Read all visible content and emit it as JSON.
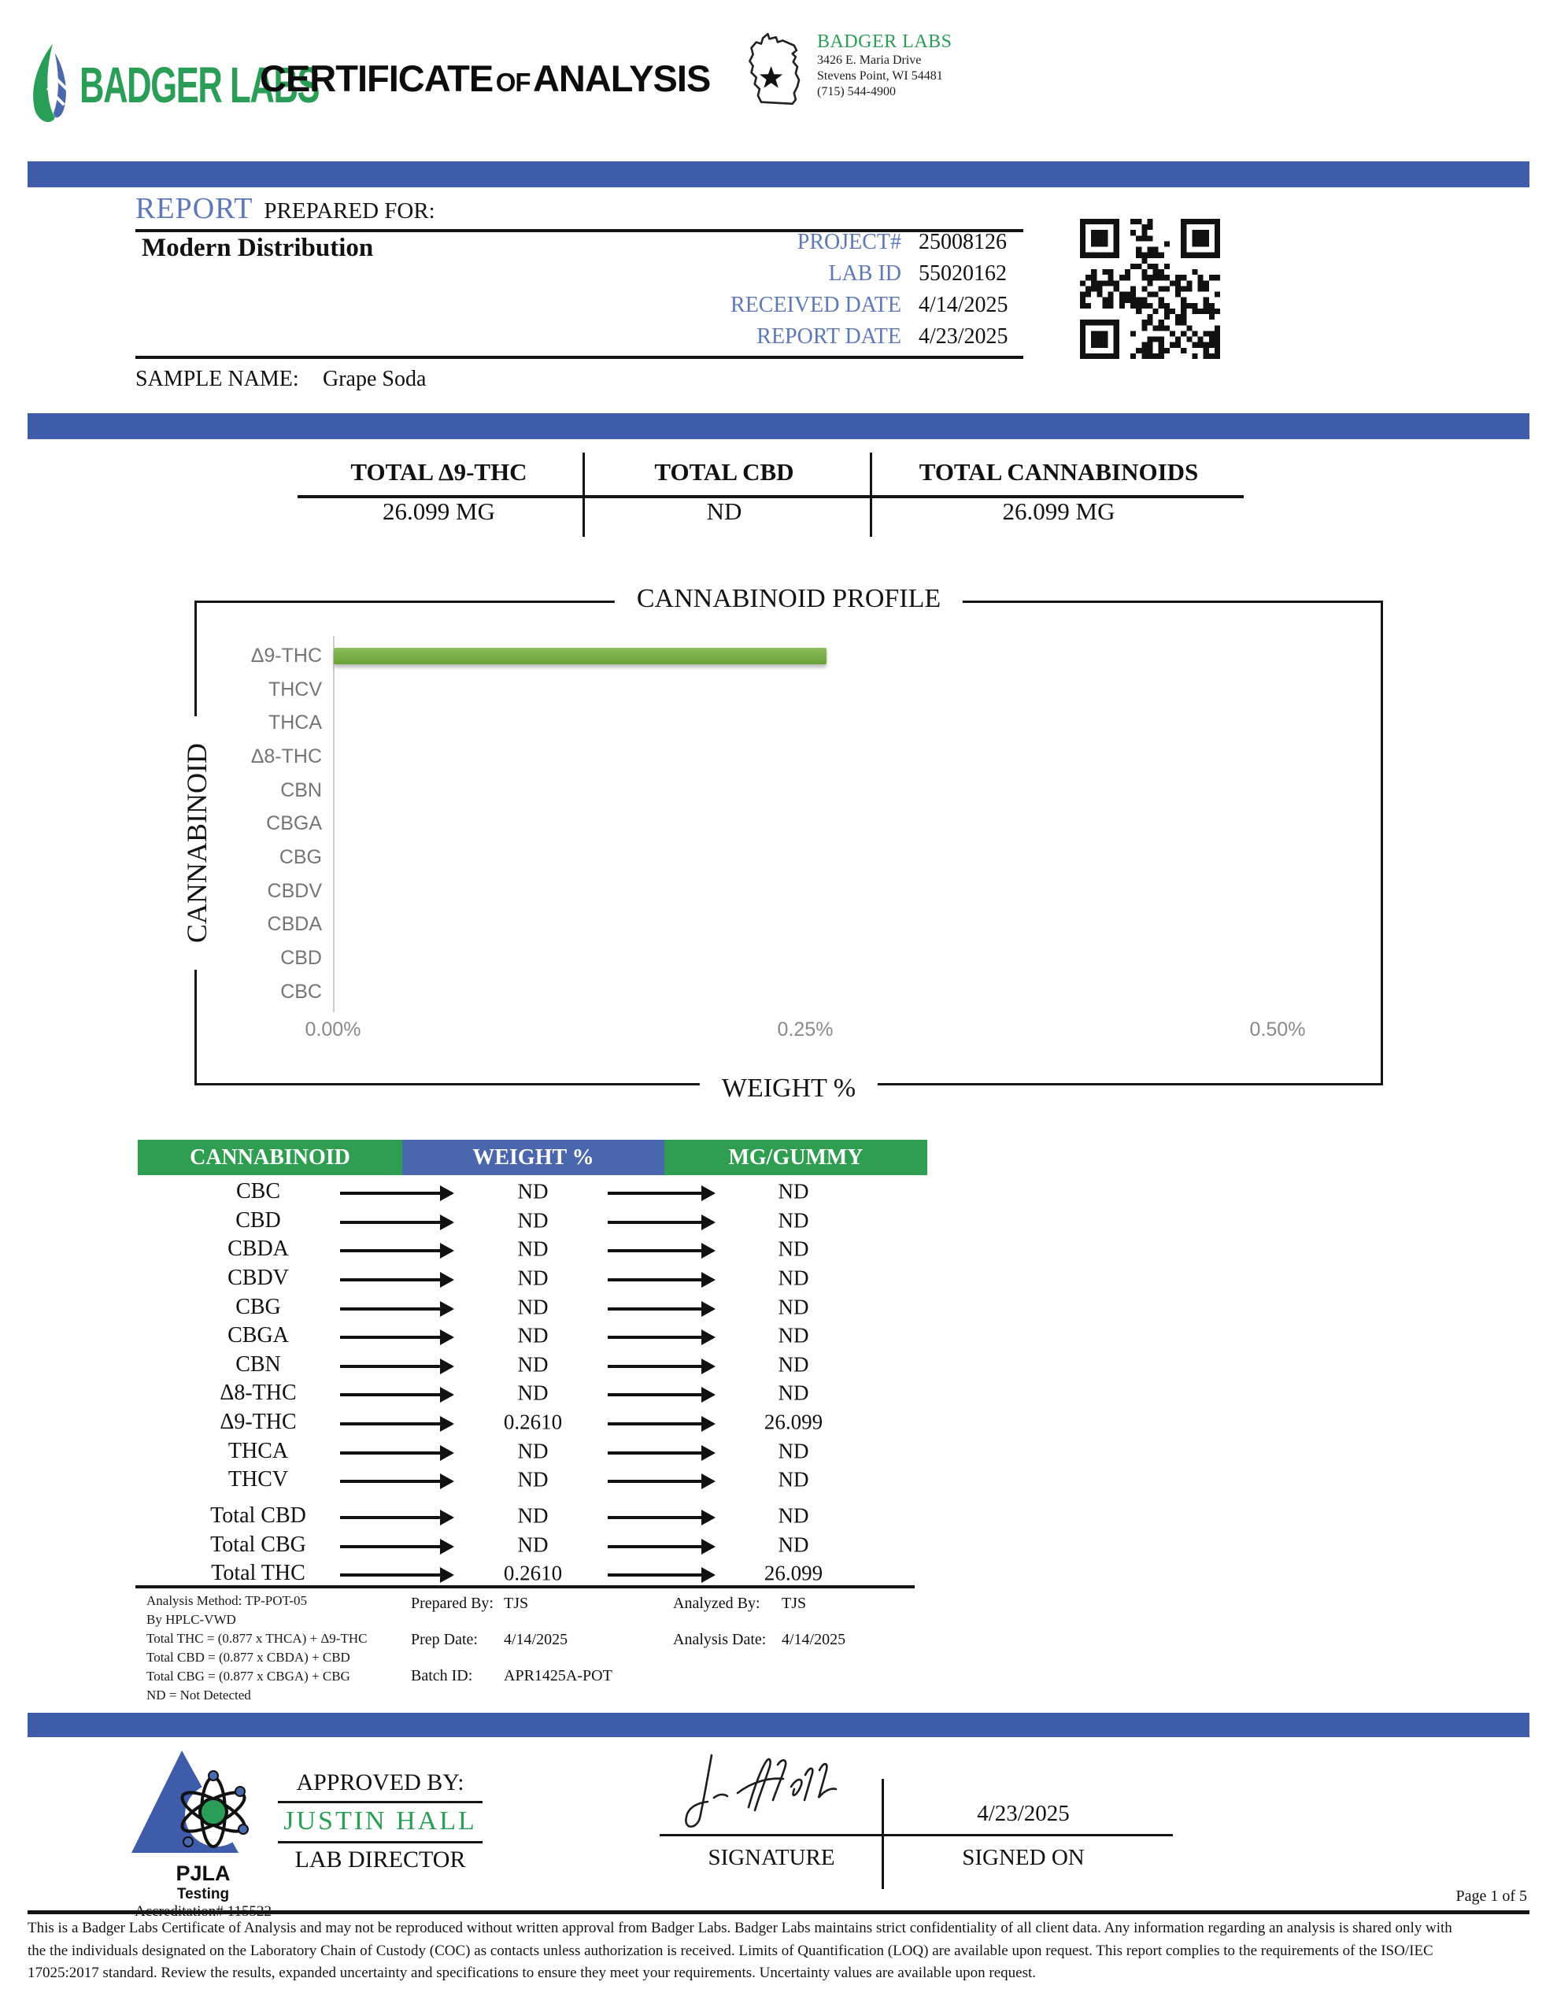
{
  "colors": {
    "bar_blue": "#3e5caa",
    "label_blue": "#5d79b9",
    "brand_green": "#2a9d56",
    "table_header_green": "#2f9e50",
    "table_header_blue": "#4a66ad",
    "chart_bar_green": "#74ab44"
  },
  "header": {
    "logo_text": "BADGER LABS",
    "title_certificate": "CERTIFICATE",
    "title_of": "of",
    "title_analysis": "ANALYSIS",
    "lab_name": "BADGER LABS",
    "address_line1": "3426 E. Maria Drive",
    "address_line2": "Stevens Point, WI 54481",
    "phone": "(715) 544-4900"
  },
  "report": {
    "section_label": "REPORT",
    "prepared_for": "PREPARED FOR:",
    "client": "Modern Distribution",
    "fields": [
      {
        "label": "PROJECT#",
        "value": "25008126"
      },
      {
        "label": "LAB ID",
        "value": "55020162"
      },
      {
        "label": "RECEIVED DATE",
        "value": "4/14/2025"
      },
      {
        "label": "REPORT DATE",
        "value": "4/23/2025"
      }
    ],
    "sample_name_label": "SAMPLE NAME:",
    "sample_name": "Grape Soda"
  },
  "totals": [
    {
      "label": "TOTAL Δ9-THC",
      "value": "26.099 MG"
    },
    {
      "label": "TOTAL CBD",
      "value": "ND"
    },
    {
      "label": "TOTAL CANNABINOIDS",
      "value": "26.099 MG"
    }
  ],
  "chart_data": {
    "type": "bar",
    "orientation": "horizontal",
    "title": "CANNABINOID PROFILE",
    "ylabel": "CANNABINOID",
    "xlabel": "WEIGHT %",
    "categories": [
      "Δ9-THC",
      "THCV",
      "THCA",
      "Δ8-THC",
      "CBN",
      "CBGA",
      "CBG",
      "CBDV",
      "CBDA",
      "CBD",
      "CBC"
    ],
    "values": [
      0.261,
      0,
      0,
      0,
      0,
      0,
      0,
      0,
      0,
      0,
      0
    ],
    "xlim": [
      0,
      0.5
    ],
    "xticks": [
      "0.00%",
      "0.25%",
      "0.50%"
    ],
    "grid": false,
    "bar_color": "#74ab44"
  },
  "results_table": {
    "headers": [
      "CANNABINOID",
      "WEIGHT %",
      "MG/GUMMY"
    ],
    "rows": [
      {
        "name": "CBC",
        "weight": "ND",
        "mg": "ND"
      },
      {
        "name": "CBD",
        "weight": "ND",
        "mg": "ND"
      },
      {
        "name": "CBDA",
        "weight": "ND",
        "mg": "ND"
      },
      {
        "name": "CBDV",
        "weight": "ND",
        "mg": "ND"
      },
      {
        "name": "CBG",
        "weight": "ND",
        "mg": "ND"
      },
      {
        "name": "CBGA",
        "weight": "ND",
        "mg": "ND"
      },
      {
        "name": "CBN",
        "weight": "ND",
        "mg": "ND"
      },
      {
        "name": "Δ8-THC",
        "weight": "ND",
        "mg": "ND"
      },
      {
        "name": "Δ9-THC",
        "weight": "0.2610",
        "mg": "26.099"
      },
      {
        "name": "THCA",
        "weight": "ND",
        "mg": "ND"
      },
      {
        "name": "THCV",
        "weight": "ND",
        "mg": "ND"
      }
    ],
    "total_rows": [
      {
        "name": "Total CBD",
        "weight": "ND",
        "mg": "ND"
      },
      {
        "name": "Total CBG",
        "weight": "ND",
        "mg": "ND"
      },
      {
        "name": "Total THC",
        "weight": "0.2610",
        "mg": "26.099"
      }
    ]
  },
  "notes": {
    "method_lines": [
      "Analysis Method: TP-POT-05",
      "By HPLC-VWD",
      "Total THC = (0.877 x  THCA) + Δ9-THC",
      "Total CBD = (0.877 x  CBDA) + CBD",
      "Total CBG = (0.877 x  CBGA) + CBG",
      "ND = Not Detected"
    ],
    "prep": [
      {
        "label": "Prepared By:",
        "value": "TJS"
      },
      {
        "label": "Prep Date:",
        "value": "4/14/2025"
      },
      {
        "label": "Batch ID:",
        "value": "APR1425A-POT"
      }
    ],
    "analysis": [
      {
        "label": "Analyzed By:",
        "value": "TJS"
      },
      {
        "label": "Analysis Date:",
        "value": "4/14/2025"
      }
    ]
  },
  "accreditation": {
    "org": "PJLA",
    "sub": "Testing",
    "number": "Accreditation# 115522"
  },
  "approval": {
    "approved_by_label": "APPROVED BY:",
    "name": "JUSTIN HALL",
    "role": "LAB DIRECTOR",
    "signature_label": "SIGNATURE",
    "signed_on_label": "SIGNED ON",
    "signed_date": "4/23/2025"
  },
  "footer": {
    "page": "Page 1 of 5",
    "disclaimer_lines": [
      "This is a Badger Labs Certificate of Analysis and may not be reproduced without written approval from Badger Labs. Badger Labs maintains strict confidentiality of all client data. Any information regarding an analysis is shared only with",
      "the the individuals designated on the Laboratory Chain of Custody (COC) as contacts unless authorization is received. Limits of Quantification (LOQ) are available upon request. This report complies to the requirements of the ISO/IEC",
      "17025:2017 standard. Review the results, expanded uncertainty and specifications to ensure they meet your requirements. Uncertainty values are available upon request."
    ]
  }
}
